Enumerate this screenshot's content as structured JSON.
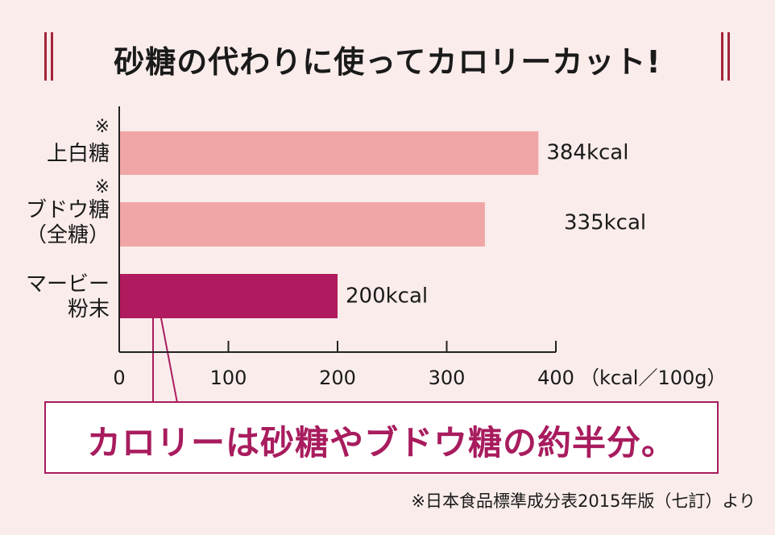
{
  "title": "砂糖の代わりに使ってカロリーカット!",
  "chart_data": {
    "type": "bar",
    "orientation": "horizontal",
    "categories": [
      {
        "note": "※",
        "lines": [
          "上白糖"
        ]
      },
      {
        "note": "※",
        "lines": [
          "ブドウ糖",
          "（全糖）"
        ]
      },
      {
        "note": "",
        "lines": [
          "マービー",
          "粉末"
        ]
      }
    ],
    "values": [
      384,
      335,
      200
    ],
    "value_labels": [
      "384kcal",
      "335kcal",
      "200kcal"
    ],
    "bar_colors": [
      "#f0a6a6",
      "#f0a6a6",
      "#b01a5e"
    ],
    "xlim": [
      0,
      400
    ],
    "xticks": [
      "0",
      "100",
      "200",
      "300",
      "400"
    ],
    "xunit": "（kcal／100g）"
  },
  "callout": "カロリーは砂糖やブドウ糖の約半分。",
  "source": "※日本食品標準成分表2015年版（七訂）より"
}
